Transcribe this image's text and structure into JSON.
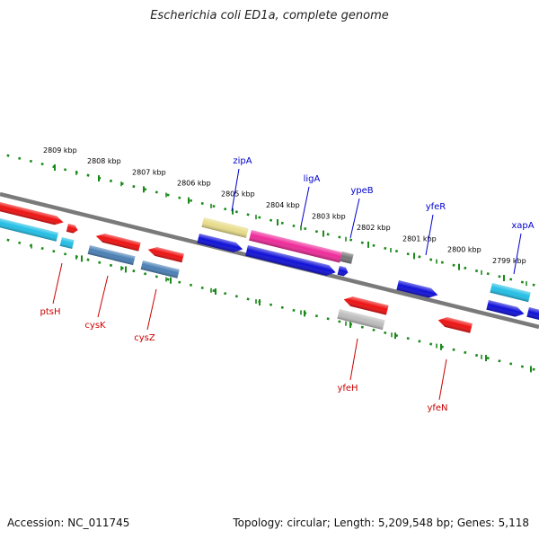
{
  "title": "Escherichia coli ED1a, complete genome",
  "accession": "Accession: NC_011745",
  "topology": "Topology: circular; Length: 5,209,548 bp; Genes: 5,118",
  "colors": {
    "backbone": "#7a7a7a",
    "ruler_dots": "#1a8a1a",
    "upper_label": "#0000cc",
    "lower_label": "#cc0000",
    "tick_label": "#000000"
  },
  "scale": {
    "unit": "kbp",
    "ticks": [
      {
        "label": "2809 kbp"
      },
      {
        "label": "2808 kbp"
      },
      {
        "label": "2807 kbp"
      },
      {
        "label": "2806 kbp"
      },
      {
        "label": "2805 kbp"
      },
      {
        "label": "2804 kbp"
      },
      {
        "label": "2803 kbp"
      },
      {
        "label": "2802 kbp"
      },
      {
        "label": "2801 kbp"
      },
      {
        "label": "2800 kbp"
      },
      {
        "label": "2799 kbp"
      }
    ]
  },
  "genes": {
    "upper": [
      {
        "name": "zipA",
        "color": "#e8dc8a"
      },
      {
        "name": "ligA",
        "color": "#ee2b9a"
      },
      {
        "name": "ypeB",
        "color": "#1010d8"
      },
      {
        "name": "yfeR",
        "color": "#1010d8"
      },
      {
        "name": "xapA",
        "color": "#22bfe6"
      }
    ],
    "lower": [
      {
        "name": "ptsH",
        "color": "#ee1111"
      },
      {
        "name": "cysK",
        "color": "#4a7fb5"
      },
      {
        "name": "cysZ",
        "color": "#ee1111"
      },
      {
        "name": "yfeH",
        "color": "#bdbdbd"
      },
      {
        "name": "yfeN",
        "color": "#ee1111"
      }
    ],
    "unlabeled_colors": [
      "#ee1111",
      "#22bfe6",
      "#1010d8",
      "#777777"
    ]
  }
}
